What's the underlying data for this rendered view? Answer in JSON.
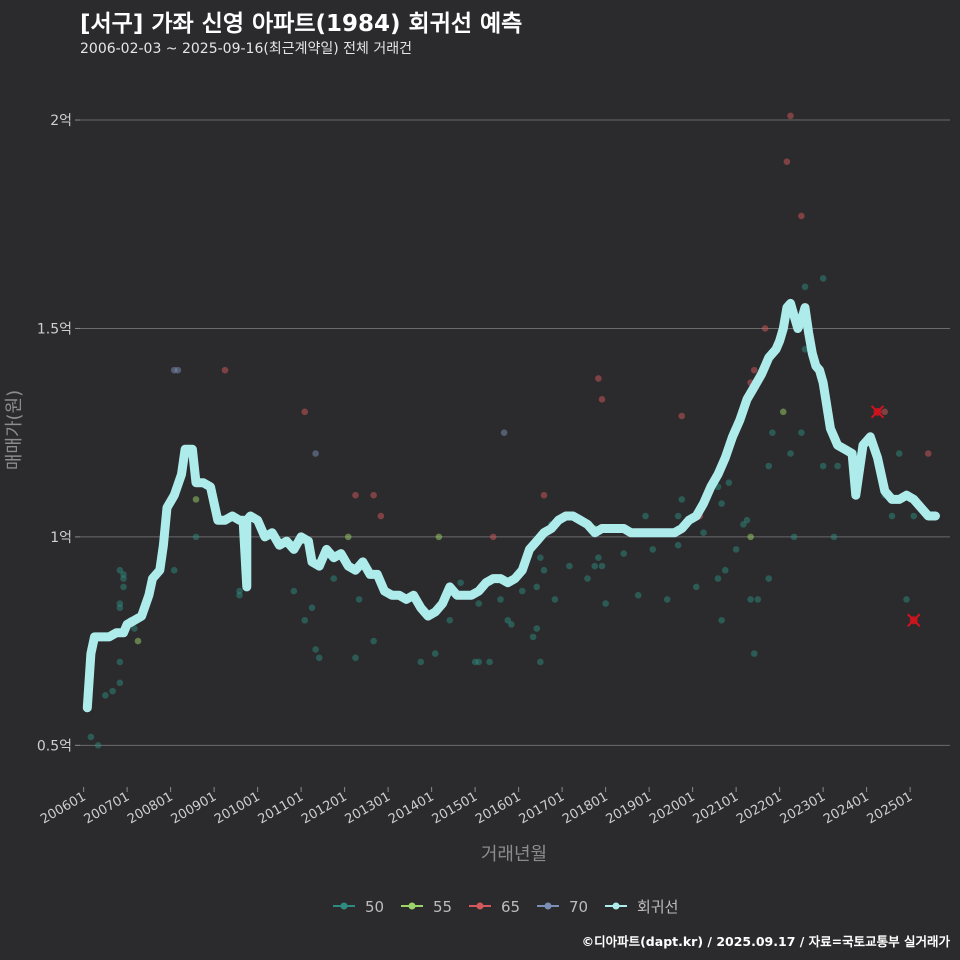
{
  "header": {
    "title": "[서구] 가좌 신영 아파트(1984) 회귀선 예측",
    "subtitle": "2006-02-03 ~ 2025-09-16(최근계약일) 전체 거래건"
  },
  "footer": "©디아파트(dapt.kr) / 2025.09.17 / 자료=국토교통부 실거래가",
  "colors": {
    "background": "#2b2a2c",
    "grid": "#6b6b6b",
    "regression": "#aeecec",
    "s50": "#2e8b80",
    "s55": "#9dd46a",
    "s65": "#d2585c",
    "s70": "#7a8fb6",
    "highlight": "#d0141e"
  },
  "chart_data": {
    "type": "scatter",
    "xlabel": "거래년월",
    "ylabel": "매매가(원)",
    "x_range": [
      "2005-12",
      "2025-12"
    ],
    "ylim": [
      40000000,
      212000000
    ],
    "y_ticks": [
      {
        "value": 50000000,
        "label": "0.5억"
      },
      {
        "value": 100000000,
        "label": "1억"
      },
      {
        "value": 150000000,
        "label": "1.5억"
      },
      {
        "value": 200000000,
        "label": "2억"
      }
    ],
    "x_ticks": [
      "200601",
      "200701",
      "200801",
      "200901",
      "201001",
      "201101",
      "201201",
      "201301",
      "201401",
      "201501",
      "201601",
      "201701",
      "201801",
      "201901",
      "202001",
      "202101",
      "202201",
      "202301",
      "202401",
      "202501"
    ],
    "grid": true,
    "legend_position": "bottom",
    "series": [
      {
        "name": "50",
        "color": "#2e8b80",
        "points": [
          [
            "2006-03",
            52000000
          ],
          [
            "2006-05",
            50000000
          ],
          [
            "2006-07",
            62000000
          ],
          [
            "2006-09",
            63000000
          ],
          [
            "2006-11",
            65000000
          ],
          [
            "2006-11",
            70000000
          ],
          [
            "2006-11",
            83000000
          ],
          [
            "2006-11",
            84000000
          ],
          [
            "2006-11",
            92000000
          ],
          [
            "2006-12",
            88000000
          ],
          [
            "2006-12",
            90000000
          ],
          [
            "2006-12",
            91000000
          ],
          [
            "2007-02",
            80000000
          ],
          [
            "2007-03",
            78000000
          ],
          [
            "2008-02",
            92000000
          ],
          [
            "2008-08",
            100000000
          ],
          [
            "2009-08",
            86000000
          ],
          [
            "2009-08",
            87000000
          ],
          [
            "2010-11",
            87000000
          ],
          [
            "2011-02",
            80000000
          ],
          [
            "2011-04",
            83000000
          ],
          [
            "2011-05",
            73000000
          ],
          [
            "2011-06",
            71000000
          ],
          [
            "2011-10",
            90000000
          ],
          [
            "2012-04",
            71000000
          ],
          [
            "2012-05",
            85000000
          ],
          [
            "2012-09",
            75000000
          ],
          [
            "2013-10",
            70000000
          ],
          [
            "2014-02",
            72000000
          ],
          [
            "2014-06",
            80000000
          ],
          [
            "2014-09",
            89000000
          ],
          [
            "2015-01",
            70000000
          ],
          [
            "2015-02",
            70000000
          ],
          [
            "2015-02",
            84000000
          ],
          [
            "2015-05",
            70000000
          ],
          [
            "2015-06",
            90000000
          ],
          [
            "2015-08",
            85000000
          ],
          [
            "2015-10",
            80000000
          ],
          [
            "2015-11",
            79000000
          ],
          [
            "2016-02",
            87000000
          ],
          [
            "2016-05",
            76000000
          ],
          [
            "2016-06",
            78000000
          ],
          [
            "2016-06",
            88000000
          ],
          [
            "2016-07",
            70000000
          ],
          [
            "2016-07",
            95000000
          ],
          [
            "2016-08",
            92000000
          ],
          [
            "2016-10",
            103000000
          ],
          [
            "2016-11",
            85000000
          ],
          [
            "2017-03",
            93000000
          ],
          [
            "2017-08",
            90000000
          ],
          [
            "2017-10",
            93000000
          ],
          [
            "2017-11",
            95000000
          ],
          [
            "2017-12",
            93000000
          ],
          [
            "2018-01",
            84000000
          ],
          [
            "2018-06",
            96000000
          ],
          [
            "2018-10",
            86000000
          ],
          [
            "2018-12",
            105000000
          ],
          [
            "2019-02",
            97000000
          ],
          [
            "2019-06",
            85000000
          ],
          [
            "2019-09",
            98000000
          ],
          [
            "2019-09",
            105000000
          ],
          [
            "2019-10",
            109000000
          ],
          [
            "2020-02",
            88000000
          ],
          [
            "2020-04",
            101000000
          ],
          [
            "2020-08",
            90000000
          ],
          [
            "2020-08",
            112000000
          ],
          [
            "2020-09",
            80000000
          ],
          [
            "2020-09",
            108000000
          ],
          [
            "2020-10",
            92000000
          ],
          [
            "2020-11",
            113000000
          ],
          [
            "2021-01",
            97000000
          ],
          [
            "2021-03",
            103000000
          ],
          [
            "2021-04",
            104000000
          ],
          [
            "2021-05",
            85000000
          ],
          [
            "2021-06",
            72000000
          ],
          [
            "2021-07",
            85000000
          ],
          [
            "2021-10",
            90000000
          ],
          [
            "2021-10",
            117000000
          ],
          [
            "2021-11",
            125000000
          ],
          [
            "2022-04",
            120000000
          ],
          [
            "2022-05",
            100000000
          ],
          [
            "2022-07",
            125000000
          ],
          [
            "2022-08",
            160000000
          ],
          [
            "2022-08",
            145000000
          ],
          [
            "2023-01",
            117000000
          ],
          [
            "2023-01",
            162000000
          ],
          [
            "2023-04",
            100000000
          ],
          [
            "2023-05",
            117000000
          ],
          [
            "2024-06",
            110000000
          ],
          [
            "2024-08",
            105000000
          ],
          [
            "2024-10",
            120000000
          ],
          [
            "2024-12",
            85000000
          ],
          [
            "2025-02",
            105000000
          ]
        ]
      },
      {
        "name": "55",
        "color": "#9dd46a",
        "points": [
          [
            "2007-04",
            75000000
          ],
          [
            "2008-08",
            109000000
          ],
          [
            "2012-02",
            100000000
          ],
          [
            "2014-03",
            100000000
          ],
          [
            "2017-10",
            102000000
          ],
          [
            "2021-05",
            100000000
          ],
          [
            "2022-02",
            130000000
          ]
        ]
      },
      {
        "name": "65",
        "color": "#d2585c",
        "points": [
          [
            "2009-04",
            140000000
          ],
          [
            "2011-02",
            130000000
          ],
          [
            "2012-04",
            110000000
          ],
          [
            "2012-09",
            110000000
          ],
          [
            "2012-11",
            105000000
          ],
          [
            "2015-06",
            100000000
          ],
          [
            "2016-08",
            110000000
          ],
          [
            "2017-11",
            138000000
          ],
          [
            "2017-12",
            133000000
          ],
          [
            "2019-10",
            129000000
          ],
          [
            "2020-03",
            105000000
          ],
          [
            "2021-05",
            137000000
          ],
          [
            "2021-06",
            140000000
          ],
          [
            "2021-09",
            150000000
          ],
          [
            "2022-03",
            190000000
          ],
          [
            "2022-04",
            201000000
          ],
          [
            "2022-07",
            177000000
          ],
          [
            "2024-06",
            130000000
          ],
          [
            "2025-06",
            120000000
          ]
        ]
      },
      {
        "name": "70",
        "color": "#7a8fb6",
        "points": [
          [
            "2008-02",
            140000000
          ],
          [
            "2008-03",
            140000000
          ],
          [
            "2011-05",
            120000000
          ],
          [
            "2015-09",
            125000000
          ]
        ]
      },
      {
        "name": "highlight",
        "color": "#d0141e",
        "points": [
          [
            "2024-04",
            130000000
          ],
          [
            "2025-02",
            80000000
          ]
        ]
      }
    ],
    "regression": {
      "name": "회귀선",
      "color": "#aeecec",
      "points": [
        [
          "2006-02",
          59000000
        ],
        [
          "2006-03",
          72000000
        ],
        [
          "2006-04",
          76000000
        ],
        [
          "2006-06",
          76000000
        ],
        [
          "2006-08",
          76000000
        ],
        [
          "2006-10",
          77000000
        ],
        [
          "2006-12",
          77000000
        ],
        [
          "2007-01",
          79000000
        ],
        [
          "2007-03",
          80000000
        ],
        [
          "2007-05",
          81000000
        ],
        [
          "2007-07",
          86000000
        ],
        [
          "2007-08",
          90000000
        ],
        [
          "2007-10",
          92000000
        ],
        [
          "2007-11",
          98000000
        ],
        [
          "2007-12",
          107000000
        ],
        [
          "2008-02",
          110000000
        ],
        [
          "2008-04",
          115000000
        ],
        [
          "2008-05",
          121000000
        ],
        [
          "2008-07",
          121000000
        ],
        [
          "2008-08",
          113000000
        ],
        [
          "2008-10",
          113000000
        ],
        [
          "2008-12",
          112000000
        ],
        [
          "2009-02",
          104000000
        ],
        [
          "2009-04",
          104000000
        ],
        [
          "2009-06",
          105000000
        ],
        [
          "2009-08",
          104000000
        ],
        [
          "2009-09",
          104000000
        ],
        [
          "2009-10",
          88000000
        ],
        [
          "2009-10",
          104000000
        ],
        [
          "2009-11",
          105000000
        ],
        [
          "2010-01",
          104000000
        ],
        [
          "2010-03",
          100000000
        ],
        [
          "2010-05",
          101000000
        ],
        [
          "2010-07",
          98000000
        ],
        [
          "2010-09",
          99000000
        ],
        [
          "2010-11",
          97000000
        ],
        [
          "2011-01",
          100000000
        ],
        [
          "2011-03",
          99000000
        ],
        [
          "2011-04",
          94000000
        ],
        [
          "2011-06",
          93000000
        ],
        [
          "2011-08",
          97000000
        ],
        [
          "2011-10",
          95000000
        ],
        [
          "2011-12",
          96000000
        ],
        [
          "2012-02",
          93000000
        ],
        [
          "2012-04",
          92000000
        ],
        [
          "2012-06",
          94000000
        ],
        [
          "2012-08",
          91000000
        ],
        [
          "2012-10",
          91000000
        ],
        [
          "2012-12",
          87000000
        ],
        [
          "2013-02",
          86000000
        ],
        [
          "2013-04",
          86000000
        ],
        [
          "2013-06",
          85000000
        ],
        [
          "2013-08",
          86000000
        ],
        [
          "2013-10",
          83000000
        ],
        [
          "2013-12",
          81000000
        ],
        [
          "2014-02",
          82000000
        ],
        [
          "2014-04",
          84000000
        ],
        [
          "2014-06",
          88000000
        ],
        [
          "2014-08",
          86000000
        ],
        [
          "2014-10",
          86000000
        ],
        [
          "2014-12",
          86000000
        ],
        [
          "2015-02",
          87000000
        ],
        [
          "2015-04",
          89000000
        ],
        [
          "2015-06",
          90000000
        ],
        [
          "2015-08",
          90000000
        ],
        [
          "2015-10",
          89000000
        ],
        [
          "2015-12",
          90000000
        ],
        [
          "2016-02",
          92000000
        ],
        [
          "2016-04",
          97000000
        ],
        [
          "2016-06",
          99000000
        ],
        [
          "2016-08",
          101000000
        ],
        [
          "2016-10",
          102000000
        ],
        [
          "2016-12",
          104000000
        ],
        [
          "2017-02",
          105000000
        ],
        [
          "2017-04",
          105000000
        ],
        [
          "2017-06",
          104000000
        ],
        [
          "2017-08",
          103000000
        ],
        [
          "2017-10",
          101000000
        ],
        [
          "2017-12",
          102000000
        ],
        [
          "2018-02",
          102000000
        ],
        [
          "2018-04",
          102000000
        ],
        [
          "2018-06",
          102000000
        ],
        [
          "2018-08",
          101000000
        ],
        [
          "2018-10",
          101000000
        ],
        [
          "2018-12",
          101000000
        ],
        [
          "2019-02",
          101000000
        ],
        [
          "2019-04",
          101000000
        ],
        [
          "2019-06",
          101000000
        ],
        [
          "2019-08",
          101000000
        ],
        [
          "2019-10",
          102000000
        ],
        [
          "2019-12",
          104000000
        ],
        [
          "2020-02",
          105000000
        ],
        [
          "2020-04",
          108000000
        ],
        [
          "2020-06",
          112000000
        ],
        [
          "2020-08",
          115000000
        ],
        [
          "2020-10",
          119000000
        ],
        [
          "2020-12",
          124000000
        ],
        [
          "2021-02",
          128000000
        ],
        [
          "2021-04",
          133000000
        ],
        [
          "2021-06",
          136000000
        ],
        [
          "2021-08",
          139000000
        ],
        [
          "2021-10",
          143000000
        ],
        [
          "2021-12",
          145000000
        ],
        [
          "2022-01",
          147000000
        ],
        [
          "2022-02",
          150000000
        ],
        [
          "2022-03",
          155000000
        ],
        [
          "2022-04",
          156000000
        ],
        [
          "2022-05",
          153000000
        ],
        [
          "2022-06",
          150000000
        ],
        [
          "2022-07",
          152000000
        ],
        [
          "2022-08",
          155000000
        ],
        [
          "2022-09",
          149000000
        ],
        [
          "2022-10",
          144000000
        ],
        [
          "2022-11",
          141000000
        ],
        [
          "2022-12",
          140000000
        ],
        [
          "2023-01",
          137000000
        ],
        [
          "2023-03",
          126000000
        ],
        [
          "2023-05",
          122000000
        ],
        [
          "2023-07",
          121000000
        ],
        [
          "2023-09",
          120000000
        ],
        [
          "2023-10",
          110000000
        ],
        [
          "2023-12",
          122000000
        ],
        [
          "2024-02",
          124000000
        ],
        [
          "2024-04",
          119000000
        ],
        [
          "2024-06",
          111000000
        ],
        [
          "2024-08",
          109000000
        ],
        [
          "2024-10",
          109000000
        ],
        [
          "2024-12",
          110000000
        ],
        [
          "2025-02",
          109000000
        ],
        [
          "2025-04",
          107000000
        ],
        [
          "2025-06",
          105000000
        ],
        [
          "2025-08",
          105000000
        ]
      ]
    }
  },
  "legend": [
    {
      "label": "50",
      "color": "#2e8b80"
    },
    {
      "label": "55",
      "color": "#9dd46a"
    },
    {
      "label": "65",
      "color": "#d2585c"
    },
    {
      "label": "70",
      "color": "#7a8fb6"
    },
    {
      "label": "회귀선",
      "color": "#aeecec"
    }
  ]
}
